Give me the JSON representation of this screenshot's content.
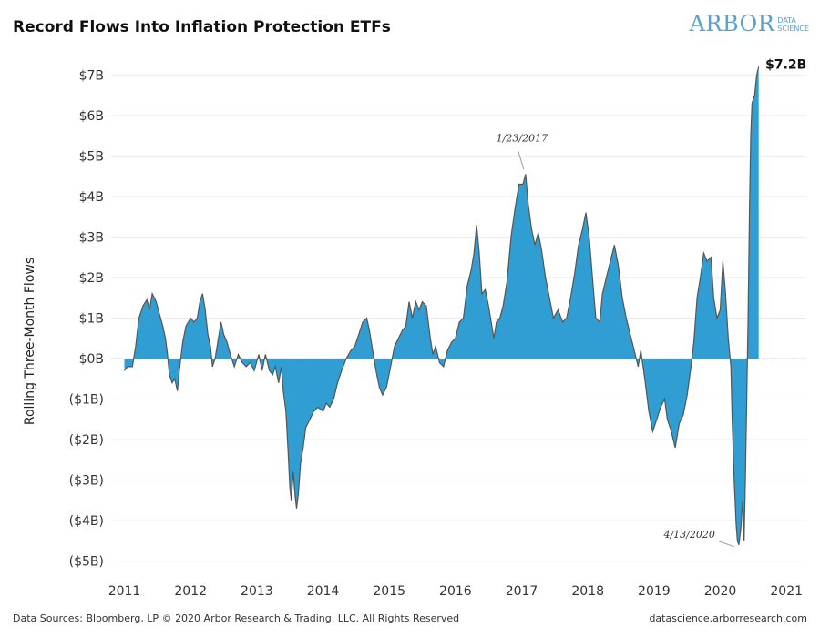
{
  "header": {
    "title": "Record Flows Into Inflation Protection ETFs",
    "logo_main": "ARBOR",
    "logo_sub_1": "DATA",
    "logo_sub_2": "SCIENCE"
  },
  "footer": {
    "left": "Data Sources: Bloomberg, LP © 2020 Arbor Research & Trading, LLC. All Rights Reserved",
    "right": "datascience.arborresearch.com"
  },
  "colors": {
    "fill": "#319ed3",
    "line": "#555555",
    "grid": "#ebebeb",
    "zero": "#c8c8c8"
  },
  "chart_data": {
    "type": "area",
    "title": "Record Flows Into Inflation Protection ETFs",
    "xlabel": "",
    "ylabel": "Rolling Three-Month Flows",
    "xlim": [
      2010.8,
      2021.3
    ],
    "ylim": [
      -5.3,
      7.5
    ],
    "x_ticks": [
      2011,
      2012,
      2013,
      2014,
      2015,
      2016,
      2017,
      2018,
      2019,
      2020,
      2021
    ],
    "x_tick_labels": [
      "2011",
      "2012",
      "2013",
      "2014",
      "2015",
      "2016",
      "2017",
      "2018",
      "2019",
      "2020",
      "2021"
    ],
    "y_ticks": [
      7,
      6,
      5,
      4,
      3,
      2,
      1,
      0,
      -1,
      -2,
      -3,
      -4,
      -5
    ],
    "y_tick_labels": [
      "$7B",
      "$6B",
      "$5B",
      "$4B",
      "$3B",
      "$2B",
      "$1B",
      "$0B",
      "($1B)",
      "($2B)",
      "($3B)",
      "($4B)",
      "($5B)"
    ],
    "grid": "horizontal",
    "legend": "none",
    "annotations": [
      {
        "text": "1/23/2017",
        "x": 2017.06,
        "y": 4.55
      },
      {
        "text": "4/13/2020",
        "x": 2020.28,
        "y": -4.6
      },
      {
        "text": "$7.2B",
        "x": 2020.6,
        "y": 7.2
      }
    ],
    "series": [
      {
        "values": [
          [
            2011.0,
            -0.3
          ],
          [
            2011.05,
            -0.2
          ],
          [
            2011.12,
            -0.2
          ],
          [
            2011.17,
            0.3
          ],
          [
            2011.22,
            1.0
          ],
          [
            2011.28,
            1.3
          ],
          [
            2011.34,
            1.45
          ],
          [
            2011.38,
            1.2
          ],
          [
            2011.42,
            1.6
          ],
          [
            2011.48,
            1.4
          ],
          [
            2011.53,
            1.1
          ],
          [
            2011.58,
            0.8
          ],
          [
            2011.62,
            0.5
          ],
          [
            2011.65,
            0.1
          ],
          [
            2011.68,
            -0.4
          ],
          [
            2011.72,
            -0.6
          ],
          [
            2011.76,
            -0.5
          ],
          [
            2011.8,
            -0.8
          ],
          [
            2011.83,
            -0.3
          ],
          [
            2011.88,
            0.4
          ],
          [
            2011.93,
            0.8
          ],
          [
            2012.0,
            1.0
          ],
          [
            2012.05,
            0.9
          ],
          [
            2012.1,
            1.0
          ],
          [
            2012.14,
            1.4
          ],
          [
            2012.18,
            1.6
          ],
          [
            2012.22,
            1.2
          ],
          [
            2012.26,
            0.6
          ],
          [
            2012.3,
            0.3
          ],
          [
            2012.33,
            -0.2
          ],
          [
            2012.37,
            0.0
          ],
          [
            2012.42,
            0.5
          ],
          [
            2012.46,
            0.9
          ],
          [
            2012.5,
            0.6
          ],
          [
            2012.55,
            0.4
          ],
          [
            2012.6,
            0.1
          ],
          [
            2012.66,
            -0.2
          ],
          [
            2012.72,
            0.1
          ],
          [
            2012.78,
            -0.1
          ],
          [
            2012.84,
            -0.2
          ],
          [
            2012.9,
            -0.1
          ],
          [
            2012.96,
            -0.3
          ],
          [
            2013.03,
            0.1
          ],
          [
            2013.08,
            -0.3
          ],
          [
            2013.13,
            0.1
          ],
          [
            2013.19,
            -0.3
          ],
          [
            2013.24,
            -0.4
          ],
          [
            2013.28,
            -0.2
          ],
          [
            2013.33,
            -0.6
          ],
          [
            2013.37,
            -0.2
          ],
          [
            2013.4,
            -0.8
          ],
          [
            2013.44,
            -1.3
          ],
          [
            2013.47,
            -2.2
          ],
          [
            2013.5,
            -3.2
          ],
          [
            2013.52,
            -3.5
          ],
          [
            2013.55,
            -2.8
          ],
          [
            2013.58,
            -3.4
          ],
          [
            2013.6,
            -3.7
          ],
          [
            2013.63,
            -3.3
          ],
          [
            2013.66,
            -2.6
          ],
          [
            2013.7,
            -2.2
          ],
          [
            2013.74,
            -1.7
          ],
          [
            2013.8,
            -1.5
          ],
          [
            2013.86,
            -1.3
          ],
          [
            2013.92,
            -1.2
          ],
          [
            2014.0,
            -1.3
          ],
          [
            2014.05,
            -1.1
          ],
          [
            2014.1,
            -1.2
          ],
          [
            2014.16,
            -1.0
          ],
          [
            2014.22,
            -0.6
          ],
          [
            2014.28,
            -0.3
          ],
          [
            2014.35,
            0.0
          ],
          [
            2014.42,
            0.2
          ],
          [
            2014.48,
            0.3
          ],
          [
            2014.54,
            0.6
          ],
          [
            2014.6,
            0.9
          ],
          [
            2014.66,
            1.0
          ],
          [
            2014.7,
            0.7
          ],
          [
            2014.75,
            0.2
          ],
          [
            2014.8,
            -0.3
          ],
          [
            2014.85,
            -0.7
          ],
          [
            2014.9,
            -0.9
          ],
          [
            2014.96,
            -0.7
          ],
          [
            2015.02,
            -0.2
          ],
          [
            2015.08,
            0.3
          ],
          [
            2015.14,
            0.5
          ],
          [
            2015.2,
            0.7
          ],
          [
            2015.25,
            0.8
          ],
          [
            2015.3,
            1.4
          ],
          [
            2015.35,
            1.0
          ],
          [
            2015.4,
            1.4
          ],
          [
            2015.45,
            1.2
          ],
          [
            2015.5,
            1.4
          ],
          [
            2015.56,
            1.3
          ],
          [
            2015.62,
            0.5
          ],
          [
            2015.66,
            0.1
          ],
          [
            2015.7,
            0.3
          ],
          [
            2015.76,
            -0.1
          ],
          [
            2015.82,
            -0.2
          ],
          [
            2015.88,
            0.2
          ],
          [
            2015.94,
            0.4
          ],
          [
            2016.0,
            0.5
          ],
          [
            2016.06,
            0.9
          ],
          [
            2016.12,
            1.0
          ],
          [
            2016.18,
            1.8
          ],
          [
            2016.24,
            2.2
          ],
          [
            2016.28,
            2.6
          ],
          [
            2016.32,
            3.3
          ],
          [
            2016.36,
            2.6
          ],
          [
            2016.4,
            1.6
          ],
          [
            2016.45,
            1.7
          ],
          [
            2016.5,
            1.3
          ],
          [
            2016.54,
            0.9
          ],
          [
            2016.58,
            0.5
          ],
          [
            2016.62,
            0.9
          ],
          [
            2016.67,
            1.0
          ],
          [
            2016.72,
            1.3
          ],
          [
            2016.78,
            1.9
          ],
          [
            2016.84,
            3.0
          ],
          [
            2016.9,
            3.7
          ],
          [
            2016.96,
            4.3
          ],
          [
            2017.02,
            4.3
          ],
          [
            2017.06,
            4.55
          ],
          [
            2017.1,
            3.8
          ],
          [
            2017.15,
            3.2
          ],
          [
            2017.2,
            2.8
          ],
          [
            2017.25,
            3.1
          ],
          [
            2017.3,
            2.7
          ],
          [
            2017.36,
            2.0
          ],
          [
            2017.42,
            1.5
          ],
          [
            2017.48,
            1.0
          ],
          [
            2017.55,
            1.2
          ],
          [
            2017.62,
            0.9
          ],
          [
            2017.68,
            1.0
          ],
          [
            2017.74,
            1.5
          ],
          [
            2017.8,
            2.1
          ],
          [
            2017.86,
            2.8
          ],
          [
            2017.92,
            3.2
          ],
          [
            2017.97,
            3.6
          ],
          [
            2018.02,
            3.0
          ],
          [
            2018.08,
            1.8
          ],
          [
            2018.12,
            1.0
          ],
          [
            2018.18,
            0.9
          ],
          [
            2018.22,
            1.6
          ],
          [
            2018.28,
            2.0
          ],
          [
            2018.34,
            2.4
          ],
          [
            2018.4,
            2.8
          ],
          [
            2018.46,
            2.3
          ],
          [
            2018.52,
            1.5
          ],
          [
            2018.58,
            1.0
          ],
          [
            2018.64,
            0.6
          ],
          [
            2018.7,
            0.2
          ],
          [
            2018.76,
            -0.2
          ],
          [
            2018.8,
            0.2
          ],
          [
            2018.86,
            -0.5
          ],
          [
            2018.92,
            -1.3
          ],
          [
            2018.98,
            -1.8
          ],
          [
            2019.04,
            -1.5
          ],
          [
            2019.1,
            -1.2
          ],
          [
            2019.16,
            -1.0
          ],
          [
            2019.2,
            -1.5
          ],
          [
            2019.26,
            -1.8
          ],
          [
            2019.32,
            -2.2
          ],
          [
            2019.38,
            -1.6
          ],
          [
            2019.44,
            -1.4
          ],
          [
            2019.5,
            -0.9
          ],
          [
            2019.55,
            -0.3
          ],
          [
            2019.6,
            0.4
          ],
          [
            2019.65,
            1.5
          ],
          [
            2019.7,
            2.0
          ],
          [
            2019.75,
            2.6
          ],
          [
            2019.8,
            2.4
          ],
          [
            2019.86,
            2.5
          ],
          [
            2019.9,
            1.5
          ],
          [
            2019.95,
            1.0
          ],
          [
            2020.0,
            1.2
          ],
          [
            2020.04,
            2.4
          ],
          [
            2020.08,
            1.6
          ],
          [
            2020.12,
            0.5
          ],
          [
            2020.16,
            -0.2
          ],
          [
            2020.18,
            -1.5
          ],
          [
            2020.21,
            -3.0
          ],
          [
            2020.24,
            -4.1
          ],
          [
            2020.26,
            -4.5
          ],
          [
            2020.28,
            -4.6
          ],
          [
            2020.31,
            -4.2
          ],
          [
            2020.34,
            -3.5
          ],
          [
            2020.36,
            -4.5
          ],
          [
            2020.38,
            -3.0
          ],
          [
            2020.4,
            -1.0
          ],
          [
            2020.42,
            1.0
          ],
          [
            2020.44,
            3.5
          ],
          [
            2020.46,
            5.5
          ],
          [
            2020.48,
            6.3
          ],
          [
            2020.52,
            6.5
          ],
          [
            2020.55,
            7.0
          ],
          [
            2020.58,
            7.2
          ]
        ]
      }
    ]
  }
}
